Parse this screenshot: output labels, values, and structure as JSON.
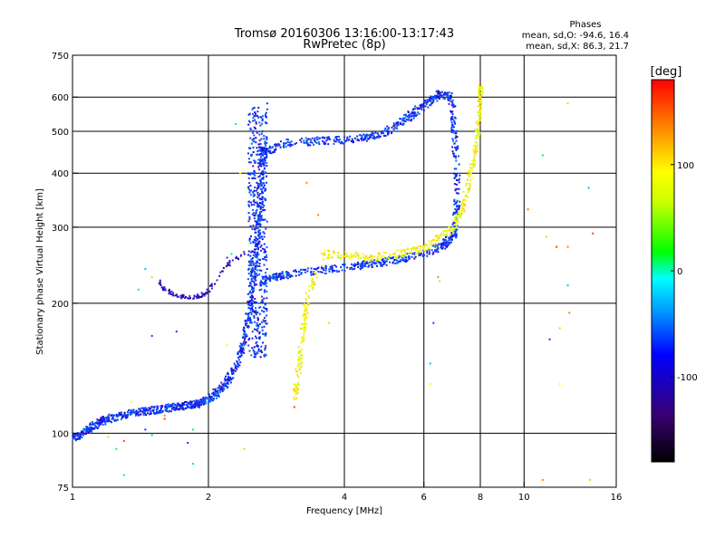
{
  "chart_data": {
    "type": "scatter",
    "title": "Tromsø 20160306 13:16:00-13:17:43",
    "subtitle": "RwPretec (8p)",
    "xlabel": "Frequency [MHz]",
    "ylabel": "Stationary phase Virtual Height [km]",
    "xscale": "log",
    "yscale": "log",
    "xlim": [
      1,
      16
    ],
    "ylim": [
      75,
      750
    ],
    "x_ticks": [
      "1",
      "2",
      "4",
      "6",
      "8",
      "10",
      "16"
    ],
    "x_tick_values": [
      1,
      2,
      4,
      6,
      8,
      10,
      16
    ],
    "y_ticks": [
      "75",
      "100",
      "200",
      "300",
      "400",
      "500",
      "600",
      "750"
    ],
    "y_tick_values": [
      75,
      100,
      200,
      300,
      400,
      500,
      600,
      750
    ],
    "x_grid": [
      2,
      4,
      6,
      8,
      10
    ],
    "y_grid": [
      100,
      200,
      300,
      400,
      500,
      600
    ],
    "stats": {
      "heading": "Phases",
      "line_o": "mean, sd,O: -94.6, 16.4",
      "line_x": "mean, sd,X:  86.3, 21.7"
    },
    "colorbar": {
      "unit": "[deg]",
      "range": [
        -180,
        180
      ],
      "ticks": [
        "100",
        "0",
        "-100"
      ],
      "tick_values": [
        100,
        0,
        -100
      ]
    },
    "o_trace": [
      [
        1.0,
        97
      ],
      [
        1.05,
        100
      ],
      [
        1.1,
        103
      ],
      [
        1.15,
        106
      ],
      [
        1.2,
        108
      ],
      [
        1.3,
        110
      ],
      [
        1.4,
        112
      ],
      [
        1.5,
        113
      ],
      [
        1.6,
        114
      ],
      [
        1.7,
        115
      ],
      [
        1.8,
        116
      ],
      [
        1.9,
        117
      ],
      [
        2.0,
        120
      ],
      [
        2.1,
        125
      ],
      [
        2.2,
        132
      ],
      [
        2.3,
        142
      ],
      [
        2.38,
        158
      ],
      [
        2.45,
        185
      ],
      [
        2.5,
        220
      ],
      [
        2.55,
        270
      ],
      [
        2.6,
        330
      ],
      [
        2.62,
        400
      ],
      [
        2.64,
        450
      ],
      [
        2.67,
        450
      ],
      [
        3.0,
        470
      ],
      [
        3.5,
        475
      ],
      [
        4.0,
        478
      ],
      [
        4.5,
        485
      ],
      [
        5.0,
        500
      ],
      [
        5.5,
        535
      ],
      [
        5.8,
        560
      ],
      [
        6.2,
        590
      ],
      [
        6.5,
        610
      ],
      [
        6.9,
        600
      ],
      [
        7.0,
        500
      ],
      [
        7.1,
        400
      ],
      [
        7.1,
        330
      ],
      [
        7.0,
        290
      ],
      [
        6.7,
        275
      ],
      [
        6.3,
        265
      ],
      [
        5.5,
        255
      ],
      [
        5.0,
        250
      ],
      [
        4.5,
        246
      ],
      [
        4.0,
        242
      ],
      [
        3.5,
        238
      ],
      [
        3.0,
        233
      ],
      [
        2.8,
        230
      ],
      [
        2.6,
        224
      ]
    ],
    "x_trace": [
      [
        3.1,
        120
      ],
      [
        3.15,
        135
      ],
      [
        3.2,
        155
      ],
      [
        3.25,
        180
      ],
      [
        3.3,
        200
      ],
      [
        3.6,
        260
      ],
      [
        4.0,
        258
      ],
      [
        4.5,
        255
      ],
      [
        5.0,
        258
      ],
      [
        5.5,
        262
      ],
      [
        6.0,
        270
      ],
      [
        6.5,
        285
      ],
      [
        7.0,
        300
      ],
      [
        7.3,
        330
      ],
      [
        7.5,
        370
      ],
      [
        7.7,
        420
      ],
      [
        7.85,
        480
      ],
      [
        7.95,
        540
      ],
      [
        8.0,
        600
      ],
      [
        8.05,
        640
      ]
    ],
    "early_trace": [
      [
        1.55,
        225
      ],
      [
        1.6,
        215
      ],
      [
        1.7,
        208
      ],
      [
        1.8,
        206
      ],
      [
        1.9,
        207
      ],
      [
        2.0,
        212
      ],
      [
        2.2,
        245
      ],
      [
        2.4,
        262
      ]
    ],
    "scattered": [
      [
        1.2,
        98
      ],
      [
        1.3,
        96
      ],
      [
        1.35,
        118
      ],
      [
        1.45,
        102
      ],
      [
        1.5,
        99
      ],
      [
        1.6,
        108
      ],
      [
        1.7,
        172
      ],
      [
        1.8,
        95
      ],
      [
        1.85,
        102
      ],
      [
        1.5,
        230
      ],
      [
        1.45,
        240
      ],
      [
        1.4,
        215
      ],
      [
        2.2,
        255
      ],
      [
        2.25,
        260
      ],
      [
        1.3,
        80
      ],
      [
        1.85,
        85
      ],
      [
        2.4,
        92
      ],
      [
        3.1,
        115
      ],
      [
        3.7,
        180
      ],
      [
        6.3,
        180
      ],
      [
        6.2,
        145
      ],
      [
        6.2,
        130
      ],
      [
        6.45,
        230
      ],
      [
        6.5,
        225
      ],
      [
        10.2,
        330
      ],
      [
        11.0,
        440
      ],
      [
        11.2,
        285
      ],
      [
        11.0,
        78
      ],
      [
        11.8,
        270
      ],
      [
        12.5,
        580
      ],
      [
        12.5,
        270
      ],
      [
        12.5,
        220
      ],
      [
        12.6,
        190
      ],
      [
        12.0,
        175
      ],
      [
        12.0,
        130
      ],
      [
        13.9,
        370
      ],
      [
        14.2,
        290
      ],
      [
        14.0,
        78
      ],
      [
        11.4,
        165
      ],
      [
        2.2,
        160
      ],
      [
        3.3,
        380
      ],
      [
        3.5,
        320
      ],
      [
        3.9,
        255
      ],
      [
        2.7,
        580
      ],
      [
        1.5,
        168
      ],
      [
        1.25,
        92
      ],
      [
        1.6,
        110
      ],
      [
        2.35,
        400
      ],
      [
        2.3,
        520
      ]
    ]
  }
}
